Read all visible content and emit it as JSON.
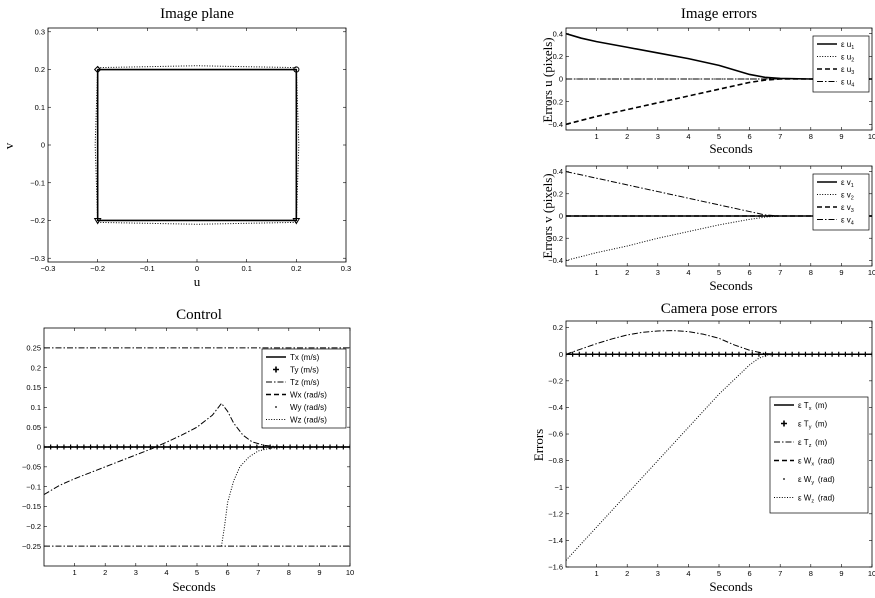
{
  "chart_data": [
    {
      "id": "image_plane",
      "type": "line",
      "title": "Image plane",
      "xlabel": "u",
      "ylabel": "v",
      "xlim": [
        -0.3,
        0.3
      ],
      "ylim": [
        -0.31,
        0.31
      ],
      "xticks": [
        -0.3,
        -0.2,
        -0.1,
        0,
        0.1,
        0.2,
        0.3
      ],
      "xtick_labels": [
        "−0.3",
        "−0.2",
        "−0.1",
        "0",
        "0.1",
        "0.2",
        "0.3"
      ],
      "yticks": [
        -0.3,
        -0.2,
        -0.1,
        0,
        0.1,
        0.2,
        0.3
      ],
      "ytick_labels": [
        "−0.3",
        "−0.2",
        "−0.1",
        "0",
        "0.1",
        "0.2",
        "0.3"
      ],
      "series": [
        {
          "style": "solid",
          "x": [
            -0.2,
            0.2,
            0.2,
            -0.2,
            -0.2
          ],
          "y": [
            0.2,
            0.2,
            -0.2,
            -0.2,
            0.2
          ]
        },
        {
          "style": "dotted",
          "x": [
            -0.2,
            0,
            0.2,
            0.205,
            0.2,
            0,
            -0.2,
            -0.205,
            -0.2
          ],
          "y": [
            0.205,
            0.21,
            0.205,
            0,
            -0.205,
            -0.21,
            -0.205,
            0,
            0.205
          ]
        }
      ],
      "markers": [
        {
          "shape": "diamond",
          "x": -0.2,
          "y": 0.2
        },
        {
          "shape": "circle",
          "x": 0.2,
          "y": 0.2
        },
        {
          "shape": "triangle",
          "x": -0.2,
          "y": -0.2
        },
        {
          "shape": "triangle",
          "x": 0.2,
          "y": -0.2
        }
      ]
    },
    {
      "id": "errors_u",
      "type": "line",
      "title": "Image errors",
      "xlabel": "Seconds",
      "ylabel": "Errors u (pixels)",
      "xlim": [
        0,
        10
      ],
      "ylim": [
        -0.45,
        0.45
      ],
      "xticks": [
        1,
        2,
        3,
        4,
        5,
        6,
        7,
        8,
        9,
        10
      ],
      "xtick_labels": [
        "1",
        "2",
        "3",
        "4",
        "5",
        "6",
        "7",
        "8",
        "9",
        "10"
      ],
      "yticks": [
        -0.4,
        -0.2,
        0,
        0.2,
        0.4
      ],
      "ytick_labels": [
        "−0.4",
        "−0.2",
        "0",
        "0.2",
        "0.4"
      ],
      "legend": {
        "position": "top-right",
        "entries": [
          {
            "symbol": "ε",
            "base": "u",
            "sub": "1",
            "style": "solid"
          },
          {
            "symbol": "ε",
            "base": "u",
            "sub": "2",
            "style": "dotted"
          },
          {
            "symbol": "ε",
            "base": "u",
            "sub": "3",
            "style": "dashed"
          },
          {
            "symbol": "ε",
            "base": "u",
            "sub": "4",
            "style": "dashdot"
          }
        ]
      },
      "series": [
        {
          "style": "solid",
          "x": [
            0,
            0.5,
            1,
            2,
            3,
            4,
            5,
            6,
            6.5,
            7,
            8,
            10
          ],
          "y": [
            0.4,
            0.36,
            0.33,
            0.28,
            0.23,
            0.18,
            0.12,
            0.04,
            0.015,
            0.005,
            0,
            0
          ]
        },
        {
          "style": "dotted",
          "x": [
            0,
            10
          ],
          "y": [
            0,
            0
          ]
        },
        {
          "style": "dashed",
          "x": [
            0,
            1,
            2,
            3,
            4,
            5,
            6,
            6.5,
            7,
            10
          ],
          "y": [
            -0.4,
            -0.33,
            -0.27,
            -0.21,
            -0.15,
            -0.09,
            -0.03,
            -0.01,
            0,
            0
          ]
        },
        {
          "style": "dashdot",
          "x": [
            0,
            10
          ],
          "y": [
            0,
            0
          ]
        }
      ]
    },
    {
      "id": "errors_v",
      "type": "line",
      "title": "",
      "xlabel": "Seconds",
      "ylabel": "Errors v (pixels)",
      "xlim": [
        0,
        10
      ],
      "ylim": [
        -0.45,
        0.45
      ],
      "xticks": [
        1,
        2,
        3,
        4,
        5,
        6,
        7,
        8,
        9,
        10
      ],
      "xtick_labels": [
        "1",
        "2",
        "3",
        "4",
        "5",
        "6",
        "7",
        "8",
        "9",
        "10"
      ],
      "yticks": [
        -0.4,
        -0.2,
        0,
        0.2,
        0.4
      ],
      "ytick_labels": [
        "−0.4",
        "−0.2",
        "0",
        "0.2",
        "0.4"
      ],
      "legend": {
        "position": "top-right",
        "entries": [
          {
            "symbol": "ε",
            "base": "v",
            "sub": "1",
            "style": "solid"
          },
          {
            "symbol": "ε",
            "base": "v",
            "sub": "2",
            "style": "dotted"
          },
          {
            "symbol": "ε",
            "base": "v",
            "sub": "3",
            "style": "dashed"
          },
          {
            "symbol": "ε",
            "base": "v",
            "sub": "4",
            "style": "dashdot"
          }
        ]
      },
      "series": [
        {
          "style": "solid",
          "x": [
            0,
            10
          ],
          "y": [
            0,
            0
          ]
        },
        {
          "style": "dotted",
          "x": [
            0,
            1,
            2,
            3,
            4,
            5,
            6,
            6.5,
            7,
            10
          ],
          "y": [
            -0.4,
            -0.33,
            -0.27,
            -0.2,
            -0.14,
            -0.08,
            -0.03,
            -0.01,
            0,
            0
          ]
        },
        {
          "style": "dashed",
          "x": [
            0,
            10
          ],
          "y": [
            0,
            0
          ]
        },
        {
          "style": "dashdot",
          "x": [
            0,
            1,
            2,
            3,
            4,
            5,
            6,
            6.5,
            7,
            10
          ],
          "y": [
            0.4,
            0.34,
            0.28,
            0.22,
            0.16,
            0.1,
            0.04,
            0.01,
            0,
            0
          ]
        }
      ]
    },
    {
      "id": "control",
      "type": "line",
      "title": "Control",
      "xlabel": "Seconds",
      "ylabel": "",
      "xlim": [
        0,
        10
      ],
      "ylim": [
        -0.3,
        0.3
      ],
      "xticks": [
        1,
        2,
        3,
        4,
        5,
        6,
        7,
        8,
        9,
        10
      ],
      "xtick_labels": [
        "1",
        "2",
        "3",
        "4",
        "5",
        "6",
        "7",
        "8",
        "9",
        "10"
      ],
      "yticks": [
        -0.25,
        -0.2,
        -0.15,
        -0.1,
        -0.05,
        0,
        0.05,
        0.1,
        0.15,
        0.2,
        0.25
      ],
      "ytick_labels": [
        "−0.25",
        "−0.2",
        "−0.15",
        "−0.1",
        "−0.05",
        "0",
        "0.05",
        "0.1",
        "0.15",
        "0.2",
        "0.25"
      ],
      "legend": {
        "position": "top-right",
        "entries": [
          {
            "label": "Tx (m/s)",
            "style": "solid"
          },
          {
            "label": "Ty (m/s)",
            "style": "plus"
          },
          {
            "label": "Tz (m/s)",
            "style": "dashdot"
          },
          {
            "label": "Wx (rad/s)",
            "style": "dashed"
          },
          {
            "label": "Wy (rad/s)",
            "style": "point"
          },
          {
            "label": "Wz (rad/s)",
            "style": "dotted"
          }
        ]
      },
      "series": [
        {
          "style": "solid",
          "x": [
            0,
            10
          ],
          "y": [
            0,
            0
          ]
        },
        {
          "style": "plus",
          "x": [
            0,
            10
          ],
          "y": [
            0,
            0
          ]
        },
        {
          "style": "dashdot",
          "x": [
            0,
            10
          ],
          "y": [
            0.25,
            0.25
          ]
        },
        {
          "style": "dashdot",
          "x": [
            0,
            10
          ],
          "y": [
            -0.25,
            -0.25
          ]
        },
        {
          "style": "dashdot",
          "x": [
            0,
            0.5,
            1,
            1.5,
            2,
            2.5,
            3,
            3.5,
            4,
            4.5,
            5,
            5.5,
            5.8,
            6,
            6.2,
            6.5,
            6.8,
            7.2,
            7.6,
            8,
            10
          ],
          "y": [
            -0.12,
            -0.097,
            -0.08,
            -0.065,
            -0.05,
            -0.035,
            -0.02,
            -0.005,
            0.012,
            0.03,
            0.05,
            0.08,
            0.11,
            0.09,
            0.06,
            0.03,
            0.013,
            0.004,
            0.001,
            0,
            0
          ]
        },
        {
          "style": "dotted",
          "x": [
            5.8,
            5.9,
            6.0,
            6.2,
            6.4,
            6.7,
            7.0,
            7.4,
            8,
            10
          ],
          "y": [
            -0.25,
            -0.2,
            -0.14,
            -0.085,
            -0.05,
            -0.025,
            -0.01,
            -0.003,
            0,
            0
          ]
        }
      ]
    },
    {
      "id": "pose_errors",
      "type": "line",
      "title": "Camera pose errors",
      "xlabel": "Seconds",
      "ylabel": "Errors",
      "xlim": [
        0,
        10
      ],
      "ylim": [
        -1.6,
        0.25
      ],
      "xticks": [
        1,
        2,
        3,
        4,
        5,
        6,
        7,
        8,
        9,
        10
      ],
      "xtick_labels": [
        "1",
        "2",
        "3",
        "4",
        "5",
        "6",
        "7",
        "8",
        "9",
        "10"
      ],
      "yticks": [
        -1.6,
        -1.4,
        -1.2,
        -1,
        -0.8,
        -0.6,
        -0.4,
        -0.2,
        0,
        0.2
      ],
      "ytick_labels": [
        "−1.6",
        "−1.4",
        "−1.2",
        "−1",
        "−0.8",
        "−0.6",
        "−0.4",
        "−0.2",
        "0",
        "0.2"
      ],
      "legend": {
        "position": "right",
        "entries": [
          {
            "symbol": "ε",
            "base": "T",
            "sub": "x",
            "unit": "(m)",
            "style": "solid"
          },
          {
            "symbol": "ε",
            "base": "T",
            "sub": "y",
            "unit": "(m)",
            "style": "plus"
          },
          {
            "symbol": "ε",
            "base": "T",
            "sub": "z",
            "unit": "(m)",
            "style": "dashdot"
          },
          {
            "symbol": "ε",
            "base": "W",
            "sub": "x",
            "unit": "(rad)",
            "style": "dashed"
          },
          {
            "symbol": "ε",
            "base": "W",
            "sub": "y",
            "unit": "(rad)",
            "style": "point"
          },
          {
            "symbol": "ε",
            "base": "W",
            "sub": "z",
            "unit": "(rad)",
            "style": "dotted"
          }
        ]
      },
      "series": [
        {
          "style": "solid",
          "x": [
            0,
            10
          ],
          "y": [
            0,
            0
          ]
        },
        {
          "style": "plus",
          "x": [
            0,
            10
          ],
          "y": [
            0,
            0
          ]
        },
        {
          "style": "dashdot",
          "x": [
            0,
            0.5,
            1,
            1.5,
            2,
            2.5,
            3,
            3.5,
            4,
            4.5,
            5,
            5.5,
            6,
            6.5,
            7,
            10
          ],
          "y": [
            0,
            0.04,
            0.08,
            0.115,
            0.145,
            0.165,
            0.175,
            0.178,
            0.17,
            0.15,
            0.12,
            0.07,
            0.03,
            0.005,
            0,
            0
          ]
        },
        {
          "style": "dashed",
          "x": [
            0,
            10
          ],
          "y": [
            0,
            0
          ]
        },
        {
          "style": "dotted",
          "x": [
            0,
            1,
            2,
            3,
            4,
            5,
            6,
            6.3,
            6.6,
            7,
            10
          ],
          "y": [
            -1.55,
            -1.3,
            -1.05,
            -0.8,
            -0.55,
            -0.3,
            -0.08,
            -0.03,
            -0.005,
            0,
            0
          ]
        }
      ]
    }
  ]
}
